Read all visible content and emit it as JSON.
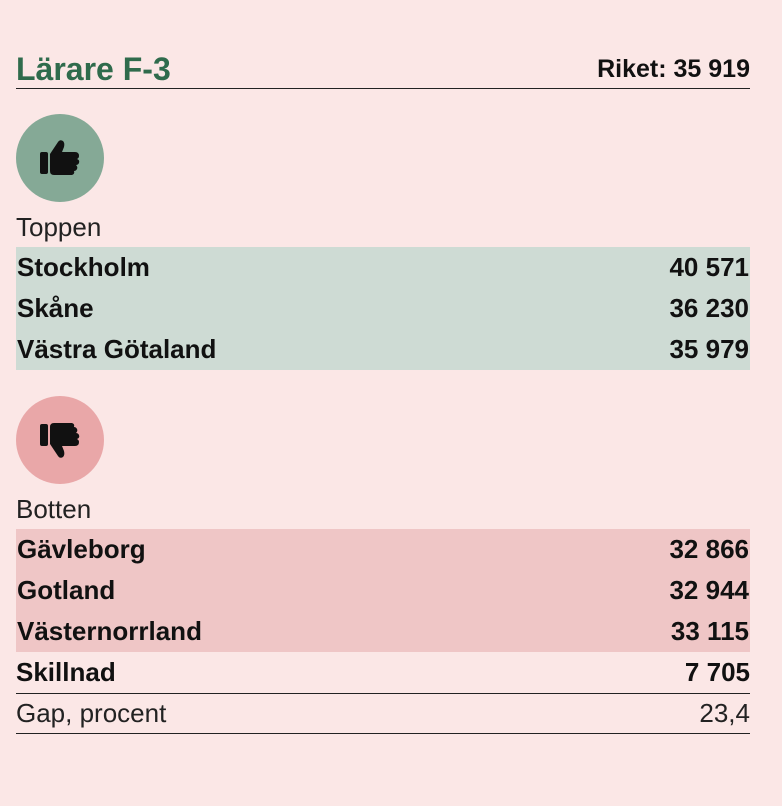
{
  "title": "Lärare F-3",
  "riket": "Riket: 35 919",
  "top": {
    "label": "Toppen",
    "icon": "thumbs-up-icon",
    "rows": [
      {
        "name": "Stockholm",
        "value": "40 571"
      },
      {
        "name": "Skåne",
        "value": "36 230"
      },
      {
        "name": "Västra Götaland",
        "value": "35 979"
      }
    ]
  },
  "bottom": {
    "label": "Botten",
    "icon": "thumbs-down-icon",
    "rows": [
      {
        "name": "Gävleborg",
        "value": "32 866"
      },
      {
        "name": "Gotland",
        "value": "32 944"
      },
      {
        "name": "Västernorrland",
        "value": "33 115"
      }
    ]
  },
  "summary": {
    "label": "Skillnad",
    "value": "7 705"
  },
  "gap": {
    "label": "Gap, procent",
    "value": "23,4"
  },
  "colors": {
    "background": "#fbe7e6",
    "title": "#2f6b4c",
    "top_circle": "#85a996",
    "top_band": "#cedbd4",
    "bottom_circle": "#e9a7a8",
    "bottom_band": "#efc6c6"
  }
}
